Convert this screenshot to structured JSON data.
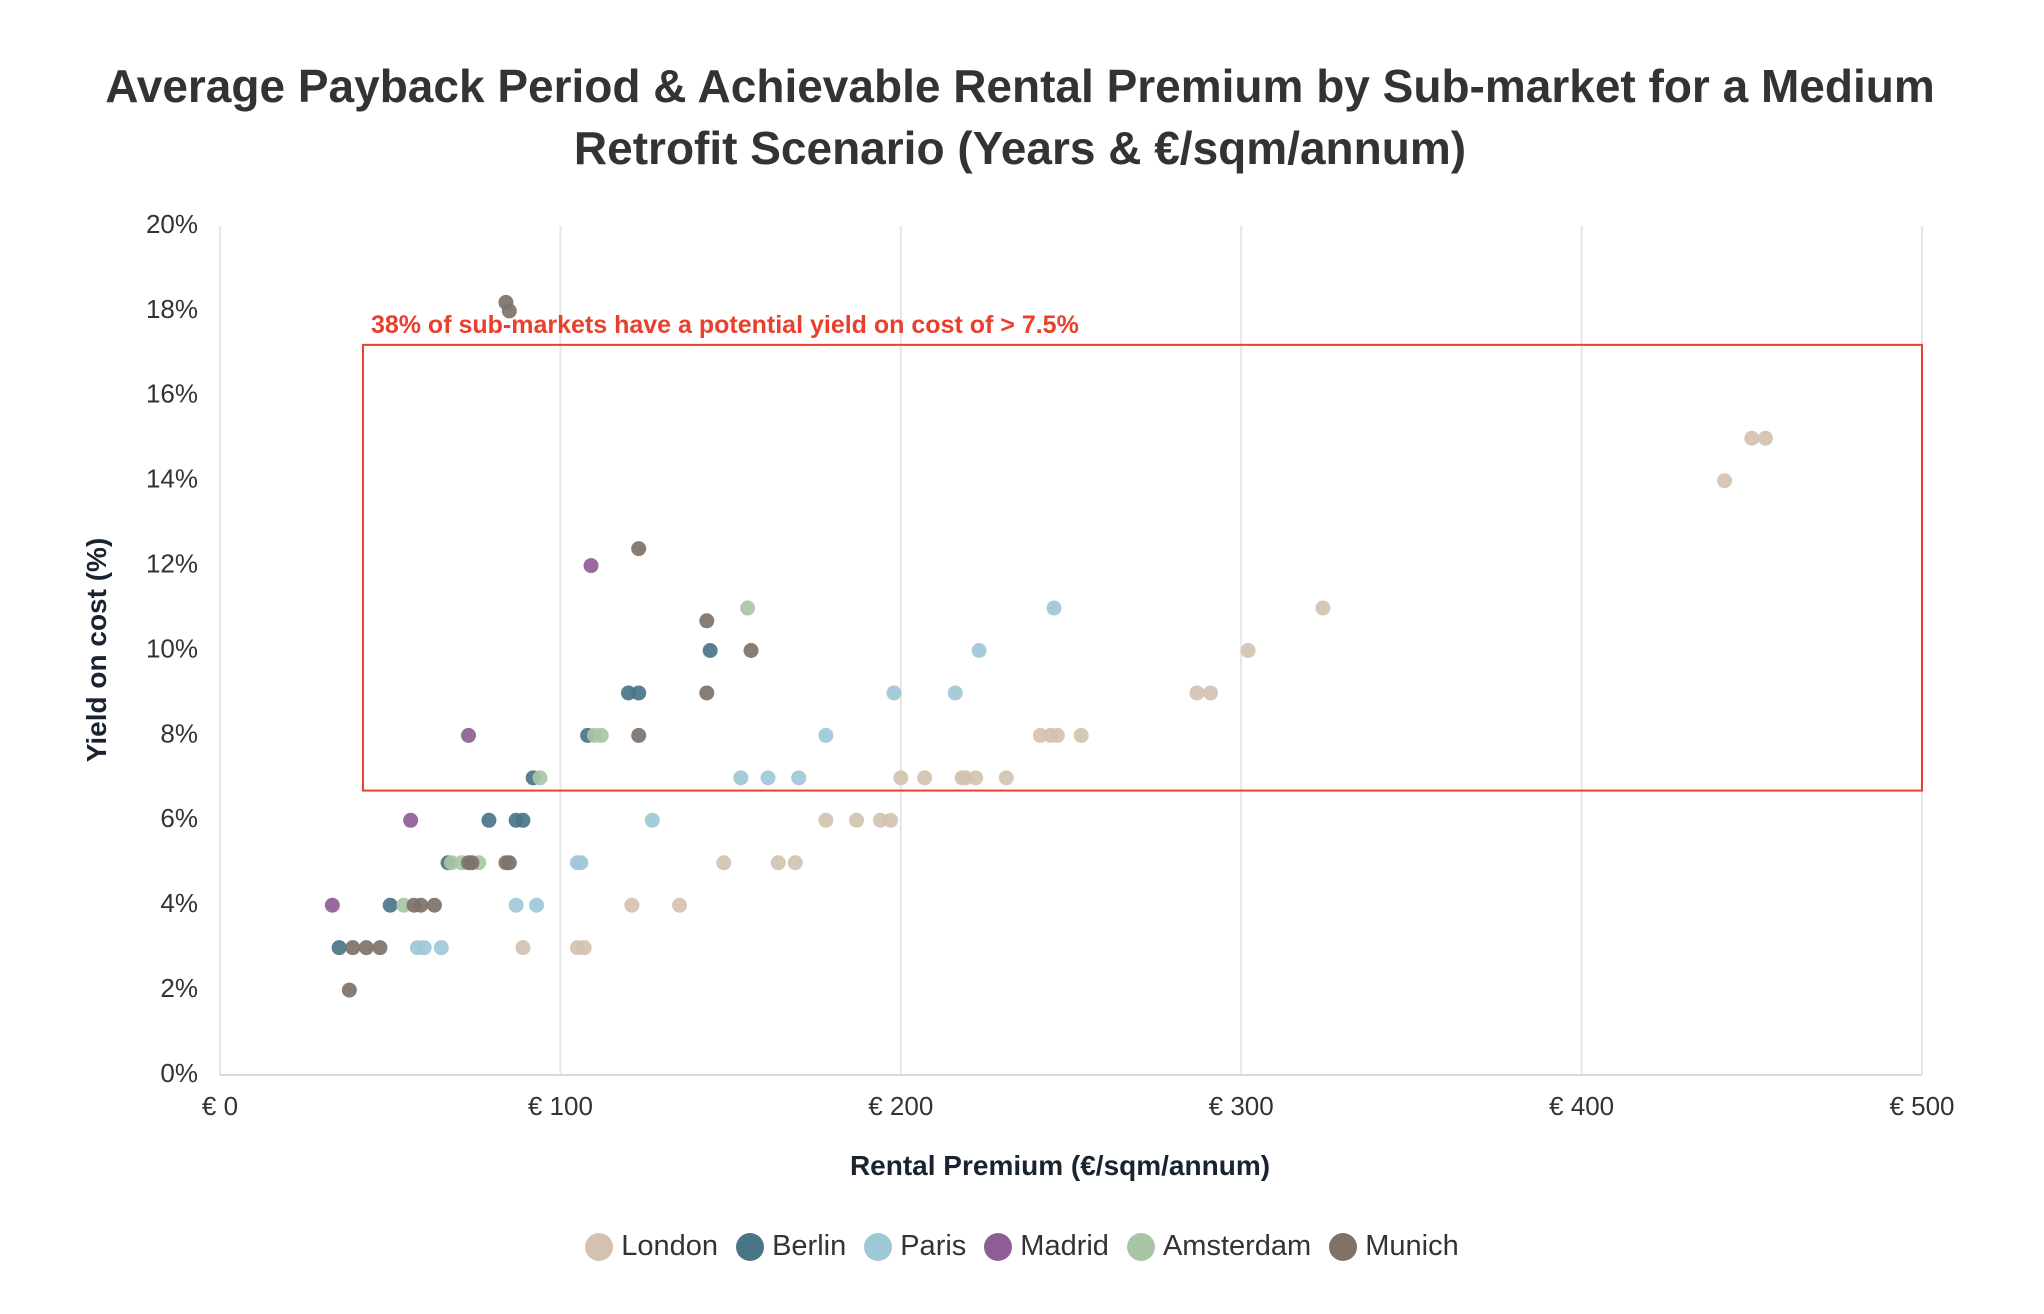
{
  "chart_data": {
    "type": "scatter",
    "title": "Average Payback Period & Achievable Rental Premium by Sub-market for a Medium Retrofit Scenario (Years & €/sqm/annum)",
    "title_lines": [
      "Average Payback Period & Achievable Rental Premium by Sub-market for a Medium",
      "Retrofit Scenario (Years & €/sqm/annum)"
    ],
    "xlabel": "Rental Premium (€/sqm/annum)",
    "ylabel": "Yield on cost (%)",
    "xlim": [
      0,
      500
    ],
    "ylim": [
      0,
      20
    ],
    "x_ticks": [
      0,
      100,
      200,
      300,
      400,
      500
    ],
    "x_tick_labels": [
      "€ 0",
      "€ 100",
      "€ 200",
      "€ 300",
      "€ 400",
      "€ 500"
    ],
    "y_ticks": [
      0,
      2,
      4,
      6,
      8,
      10,
      12,
      14,
      16,
      18,
      20
    ],
    "y_tick_labels": [
      "0%",
      "2%",
      "4%",
      "6%",
      "8%",
      "10%",
      "12%",
      "14%",
      "16%",
      "18%",
      "20%"
    ],
    "grid": "vertical",
    "legend_position": "bottom",
    "annotation": {
      "text": "38% of sub-markets have a potential yield on cost of > 7.5%",
      "x_range": [
        42,
        500
      ],
      "y_range": [
        6.7,
        17.2
      ],
      "color": "#e8402d"
    },
    "series": [
      {
        "name": "London",
        "color": "#d4c2b0",
        "points": [
          [
            89,
            3
          ],
          [
            105,
            3
          ],
          [
            107,
            3
          ],
          [
            121,
            4
          ],
          [
            135,
            4
          ],
          [
            148,
            5
          ],
          [
            164,
            5
          ],
          [
            169,
            5
          ],
          [
            178,
            6
          ],
          [
            187,
            6
          ],
          [
            194,
            6
          ],
          [
            197,
            6
          ],
          [
            200,
            7
          ],
          [
            207,
            7
          ],
          [
            218,
            7
          ],
          [
            219,
            7
          ],
          [
            222,
            7
          ],
          [
            231,
            7
          ],
          [
            241,
            8
          ],
          [
            244,
            8
          ],
          [
            246,
            8
          ],
          [
            253,
            8
          ],
          [
            287,
            9
          ],
          [
            291,
            9
          ],
          [
            302,
            10
          ],
          [
            324,
            11
          ],
          [
            442,
            14
          ],
          [
            450,
            15
          ],
          [
            454,
            15
          ]
        ]
      },
      {
        "name": "Berlin",
        "color": "#4a7587",
        "points": [
          [
            35,
            3
          ],
          [
            50,
            4
          ],
          [
            67,
            5
          ],
          [
            79,
            6
          ],
          [
            87,
            6
          ],
          [
            89,
            6
          ],
          [
            92,
            7
          ],
          [
            108,
            8
          ],
          [
            120,
            9
          ],
          [
            123,
            9
          ],
          [
            144,
            10
          ]
        ]
      },
      {
        "name": "Paris",
        "color": "#9fc8d6",
        "points": [
          [
            58,
            3
          ],
          [
            60,
            3
          ],
          [
            65,
            3
          ],
          [
            87,
            4
          ],
          [
            93,
            4
          ],
          [
            105,
            5
          ],
          [
            106,
            5
          ],
          [
            127,
            6
          ],
          [
            153,
            7
          ],
          [
            161,
            7
          ],
          [
            170,
            7
          ],
          [
            178,
            8
          ],
          [
            198,
            9
          ],
          [
            216,
            9
          ],
          [
            223,
            10
          ],
          [
            245,
            11
          ]
        ]
      },
      {
        "name": "Madrid",
        "color": "#8f5d95",
        "points": [
          [
            33,
            4
          ],
          [
            56,
            6
          ],
          [
            73,
            8
          ],
          [
            109,
            12
          ]
        ]
      },
      {
        "name": "Amsterdam",
        "color": "#a8c6a5",
        "points": [
          [
            54,
            4
          ],
          [
            68,
            5
          ],
          [
            71,
            5
          ],
          [
            76,
            5
          ],
          [
            94,
            7
          ],
          [
            110,
            8
          ],
          [
            112,
            8
          ],
          [
            155,
            11
          ]
        ]
      },
      {
        "name": "Munich",
        "color": "#7e7269",
        "points": [
          [
            38,
            2
          ],
          [
            39,
            3
          ],
          [
            43,
            3
          ],
          [
            47,
            3
          ],
          [
            57,
            4
          ],
          [
            59,
            4
          ],
          [
            63,
            4
          ],
          [
            73,
            5
          ],
          [
            74,
            5
          ],
          [
            84,
            5
          ],
          [
            85,
            5
          ],
          [
            123,
            8
          ],
          [
            143,
            9
          ],
          [
            156,
            10
          ],
          [
            143,
            10.7
          ],
          [
            123,
            12.4
          ],
          [
            84,
            18.2
          ],
          [
            85,
            18
          ]
        ]
      }
    ]
  }
}
